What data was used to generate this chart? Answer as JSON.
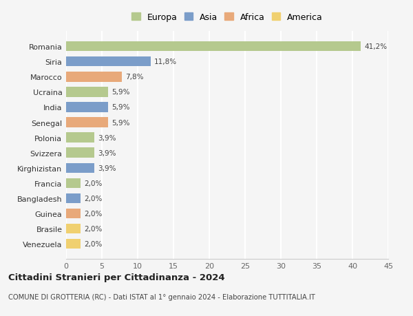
{
  "countries": [
    "Romania",
    "Siria",
    "Marocco",
    "Ucraina",
    "India",
    "Senegal",
    "Polonia",
    "Svizzera",
    "Kirghizistan",
    "Francia",
    "Bangladesh",
    "Guinea",
    "Brasile",
    "Venezuela"
  ],
  "values": [
    41.2,
    11.8,
    7.8,
    5.9,
    5.9,
    5.9,
    3.9,
    3.9,
    3.9,
    2.0,
    2.0,
    2.0,
    2.0,
    2.0
  ],
  "labels": [
    "41,2%",
    "11,8%",
    "7,8%",
    "5,9%",
    "5,9%",
    "5,9%",
    "3,9%",
    "3,9%",
    "3,9%",
    "2,0%",
    "2,0%",
    "2,0%",
    "2,0%",
    "2,0%"
  ],
  "continents": [
    "Europa",
    "Asia",
    "Africa",
    "Europa",
    "Asia",
    "Africa",
    "Europa",
    "Europa",
    "Asia",
    "Europa",
    "Asia",
    "Africa",
    "America",
    "America"
  ],
  "colors": {
    "Europa": "#b5c98e",
    "Asia": "#7b9dc9",
    "Africa": "#e8a97a",
    "America": "#f0d070"
  },
  "legend_order": [
    "Europa",
    "Asia",
    "Africa",
    "America"
  ],
  "title": "Cittadini Stranieri per Cittadinanza - 2024",
  "subtitle": "COMUNE DI GROTTERIA (RC) - Dati ISTAT al 1° gennaio 2024 - Elaborazione TUTTITALIA.IT",
  "xlim": [
    0,
    45
  ],
  "xticks": [
    0,
    5,
    10,
    15,
    20,
    25,
    30,
    35,
    40,
    45
  ],
  "background_color": "#f5f5f5",
  "grid_color": "#ffffff",
  "bar_height": 0.65
}
